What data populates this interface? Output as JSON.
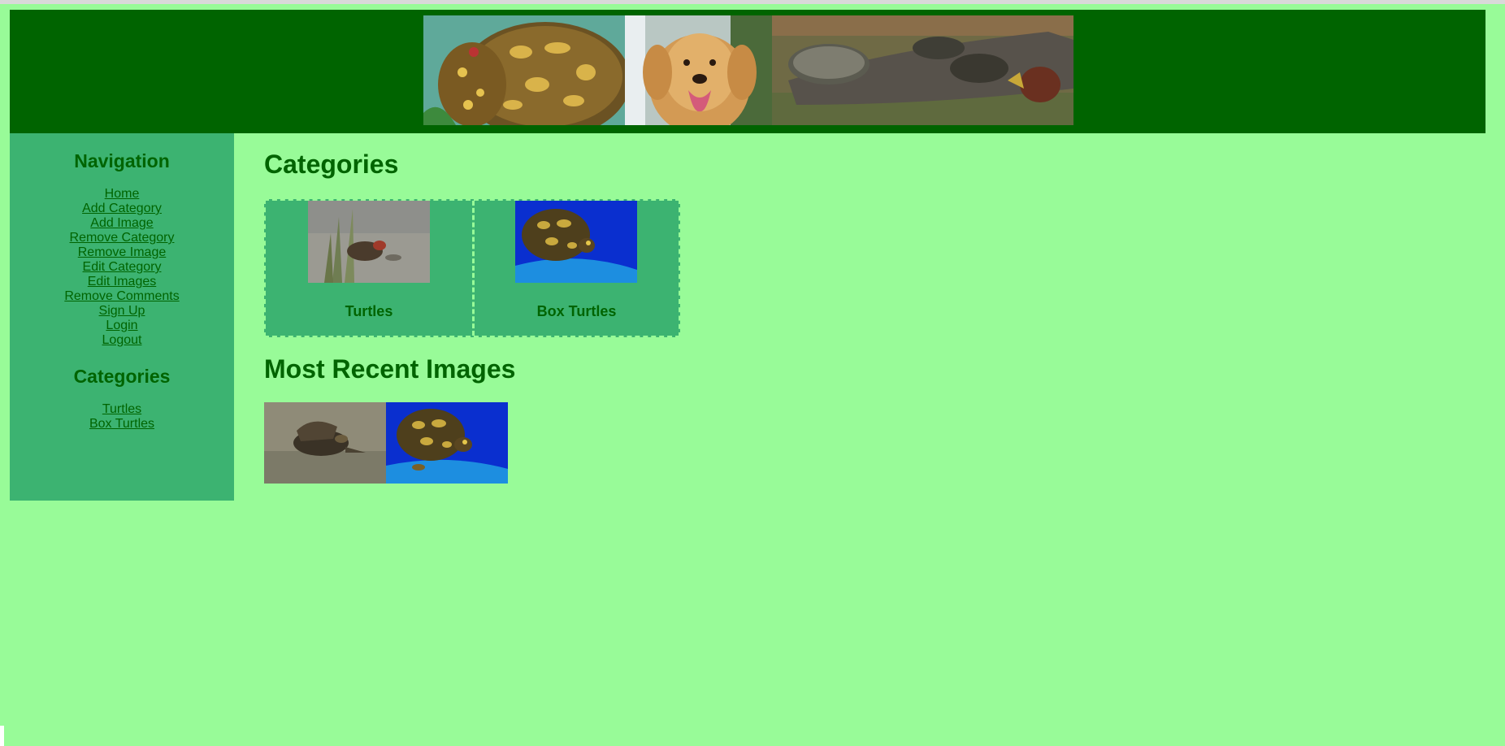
{
  "header": {
    "banner_images": [
      "box-turtle-photo",
      "golden-retriever-photo",
      "turtles-on-log-photo"
    ]
  },
  "sidebar": {
    "nav_title": "Navigation",
    "nav_items": [
      {
        "label": "Home"
      },
      {
        "label": "Add Category"
      },
      {
        "label": "Add Image"
      },
      {
        "label": "Remove Category"
      },
      {
        "label": "Remove Image"
      },
      {
        "label": "Edit Category"
      },
      {
        "label": "Edit Images"
      },
      {
        "label": "Remove Comments"
      },
      {
        "label": "Sign Up"
      },
      {
        "label": "Login"
      },
      {
        "label": "Logout"
      }
    ],
    "categories_title": "Categories",
    "category_items": [
      {
        "label": "Turtles"
      },
      {
        "label": "Box Turtles"
      }
    ]
  },
  "main": {
    "categories_title": "Categories",
    "categories": [
      {
        "label": "Turtles"
      },
      {
        "label": "Box Turtles"
      }
    ],
    "recent_title": "Most Recent Images"
  },
  "colors": {
    "page_bg": "#98fb98",
    "header_bg": "#006400",
    "sidebar_bg": "#3cb371",
    "heading": "#006400"
  }
}
